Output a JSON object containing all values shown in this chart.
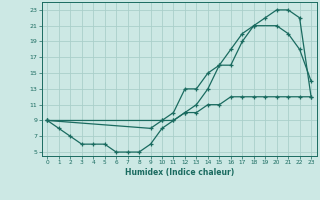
{
  "xlabel": "Humidex (Indice chaleur)",
  "bg_color": "#cce8e4",
  "grid_color": "#aacfca",
  "line_color": "#1a6b60",
  "xlim": [
    -0.5,
    23.5
  ],
  "ylim": [
    4.5,
    24.0
  ],
  "xticks": [
    0,
    1,
    2,
    3,
    4,
    5,
    6,
    7,
    8,
    9,
    10,
    11,
    12,
    13,
    14,
    15,
    16,
    17,
    18,
    19,
    20,
    21,
    22,
    23
  ],
  "yticks": [
    5,
    7,
    9,
    11,
    13,
    15,
    17,
    19,
    21,
    23
  ],
  "line1_x": [
    0,
    1,
    2,
    3,
    4,
    5,
    6,
    7,
    8,
    9,
    10,
    11,
    12,
    13,
    14,
    15,
    16,
    17,
    18,
    19,
    20,
    21,
    22,
    23
  ],
  "line1_y": [
    9,
    8,
    7,
    6,
    6,
    6,
    5,
    5,
    5,
    6,
    8,
    9,
    10,
    11,
    13,
    16,
    18,
    20,
    21,
    22,
    23,
    23,
    22,
    12
  ],
  "line2_x": [
    0,
    9,
    10,
    11,
    12,
    13,
    14,
    15,
    16,
    17,
    18,
    20,
    21,
    22,
    23
  ],
  "line2_y": [
    9,
    8,
    9,
    10,
    13,
    13,
    15,
    16,
    16,
    19,
    21,
    21,
    20,
    18,
    14
  ],
  "line3_x": [
    0,
    10,
    11,
    12,
    13,
    14,
    15,
    16,
    17,
    18,
    19,
    20,
    21,
    22,
    23
  ],
  "line3_y": [
    9,
    9,
    9,
    10,
    10,
    11,
    11,
    12,
    12,
    12,
    12,
    12,
    12,
    12,
    12
  ]
}
